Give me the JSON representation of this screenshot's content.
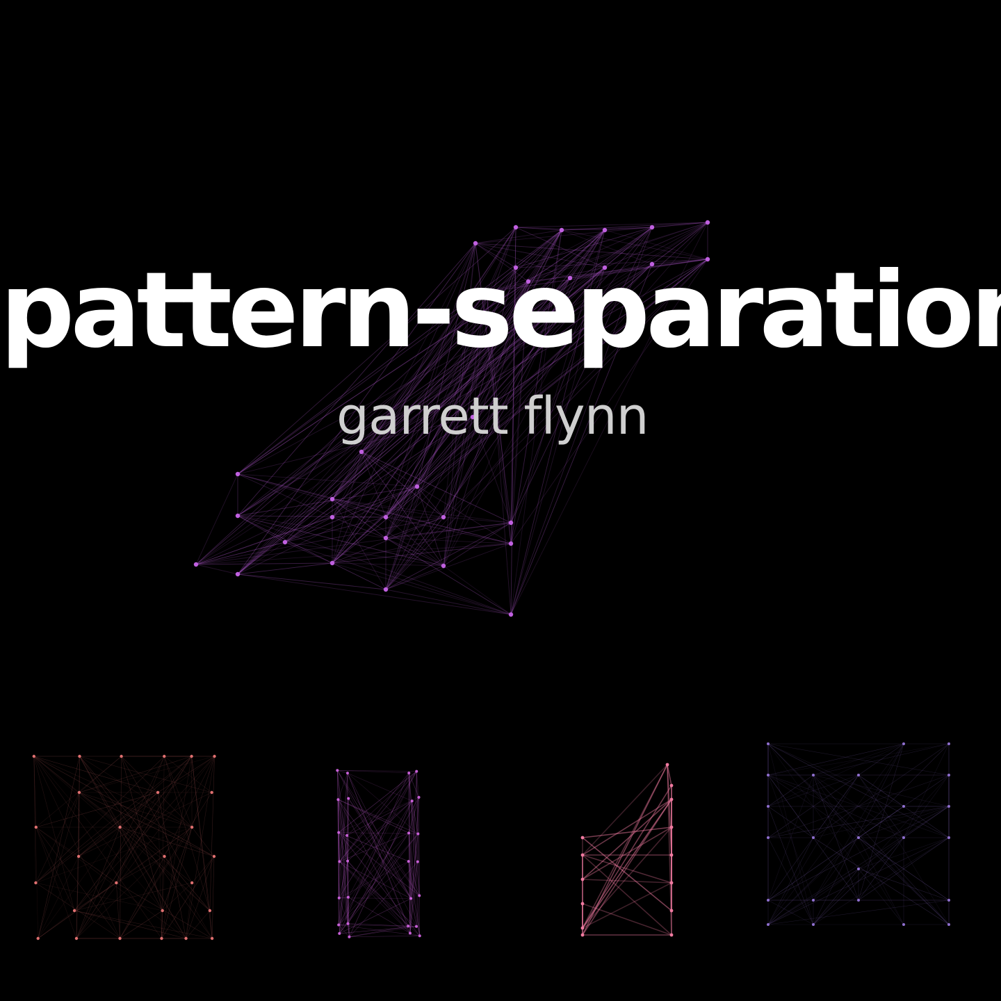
{
  "title": "pattern-separation",
  "subtitle": "garrett flynn",
  "colors": {
    "background": "#000000",
    "title": "#ffffff",
    "subtitle": "#cfcfcf",
    "main_edge": "#c060e0",
    "thumb1_edge": "#e07070",
    "thumb2_edge": "#c860d8",
    "thumb3_edge": "#f07aa0",
    "thumb4_edge": "#9070d0"
  }
}
